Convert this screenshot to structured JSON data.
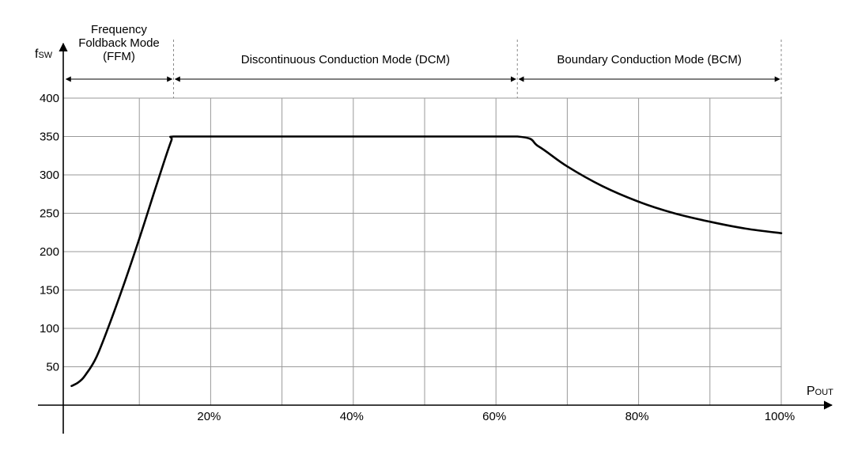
{
  "chart_data": {
    "type": "line",
    "title": "",
    "ylabel": {
      "main": "f",
      "sub": "SW"
    },
    "xlabel": {
      "main": "P",
      "sub": "OUT"
    },
    "xlim": [
      -2,
      100
    ],
    "ylim": [
      0,
      400
    ],
    "y_ticks": [
      50,
      100,
      150,
      200,
      250,
      300,
      350,
      400
    ],
    "y_tick_labels": [
      "50",
      "100",
      "150",
      "200",
      "250",
      "300",
      "350",
      "400"
    ],
    "x_gridlines": [
      0,
      10,
      20,
      30,
      40,
      50,
      60,
      70,
      80,
      90,
      100
    ],
    "x_tick_values": [
      20,
      40,
      60,
      80,
      100
    ],
    "x_tick_labels": [
      "20%",
      "40%",
      "60%",
      "80%",
      "100%"
    ],
    "grid": true,
    "line_color": "#000000",
    "grid_color": "#9a9a9a",
    "series": [
      {
        "name": "",
        "points": [
          [
            0.5,
            25
          ],
          [
            1.5,
            30
          ],
          [
            2.5,
            40
          ],
          [
            4,
            63
          ],
          [
            6,
            110
          ],
          [
            8,
            162
          ],
          [
            10,
            217
          ],
          [
            12,
            275
          ],
          [
            13.5,
            318
          ],
          [
            14.5,
            345
          ],
          [
            14.8,
            350
          ],
          [
            20,
            350
          ],
          [
            30,
            350
          ],
          [
            40,
            350
          ],
          [
            50,
            350
          ],
          [
            63,
            350
          ],
          [
            66,
            337
          ],
          [
            70,
            311
          ],
          [
            75,
            285
          ],
          [
            80,
            265
          ],
          [
            85,
            250
          ],
          [
            90,
            239
          ],
          [
            95,
            230
          ],
          [
            100,
            224
          ]
        ]
      }
    ],
    "regions": [
      {
        "label_lines": [
          "Frequency",
          "Foldback Mode",
          "(FFM)"
        ],
        "x_start": -0.5,
        "x_end": 14.8
      },
      {
        "label_lines": [
          "Discontinuous Conduction Mode (DCM)"
        ],
        "x_start": 14.8,
        "x_end": 63
      },
      {
        "label_lines": [
          "Boundary Conduction Mode (BCM)"
        ],
        "x_start": 63,
        "x_end": 100
      }
    ]
  }
}
